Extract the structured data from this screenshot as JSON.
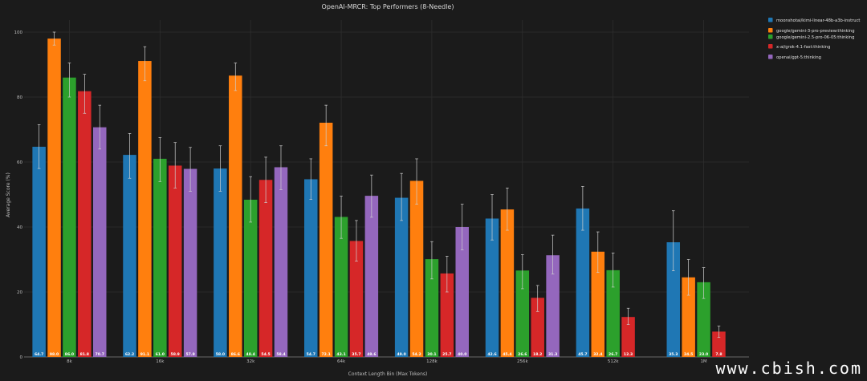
{
  "chart_data": {
    "type": "bar",
    "title": "OpenAI-MRCR: Top Performers (8-Needle)",
    "xlabel": "Context Length Bin (Max Tokens)",
    "ylabel": "Average Score (%)",
    "ylim": [
      0,
      100
    ],
    "yticks": [
      "0",
      "20",
      "40",
      "60",
      "80",
      "100"
    ],
    "grid": true,
    "legend_position": "top-right",
    "categories": [
      "8k",
      "16k",
      "32k",
      "64k",
      "128k",
      "256k",
      "512k",
      "1M"
    ],
    "series": [
      {
        "name": "moonshotai/kimi-linear-48b-a3b-instruct",
        "color": "#1f77b4",
        "values": [
          64.7,
          62.2,
          58.0,
          54.7,
          49.0,
          42.6,
          45.7,
          35.3
        ],
        "labels": [
          "64.7",
          "62.2",
          "58.0",
          "54.7",
          "49.0",
          "42.6",
          "45.7",
          "35.3"
        ],
        "err_low": [
          58.0,
          55.0,
          51.0,
          48.5,
          42.0,
          36.0,
          39.0,
          26.5
        ],
        "err_high": [
          71.5,
          68.8,
          65.0,
          61.0,
          56.5,
          50.0,
          52.5,
          45.0
        ]
      },
      {
        "name": "google/gemini-3-pro-preview:thinking",
        "color": "#ff7f0e",
        "values": [
          98.0,
          91.1,
          86.6,
          72.1,
          54.2,
          45.4,
          32.4,
          24.5
        ],
        "labels": [
          "98.0",
          "91.1",
          "86.6",
          "72.1",
          "54.2",
          "45.4",
          "32.4",
          "24.5"
        ],
        "err_low": [
          96.0,
          85.0,
          82.0,
          65.0,
          47.0,
          39.0,
          26.0,
          19.0
        ],
        "err_high": [
          100.0,
          95.5,
          90.5,
          77.5,
          61.0,
          52.0,
          38.5,
          30.0
        ]
      },
      {
        "name": "google/gemini-2.5-pro-06-05:thinking",
        "color": "#2ca02c",
        "values": [
          86.0,
          61.0,
          48.4,
          43.1,
          30.1,
          26.6,
          26.7,
          23.0
        ],
        "labels": [
          "86.0",
          "61.0",
          "48.4",
          "43.1",
          "30.1",
          "26.6",
          "26.7",
          "23.0"
        ],
        "err_low": [
          80.0,
          54.0,
          41.5,
          36.5,
          24.0,
          21.0,
          21.5,
          18.0
        ],
        "err_high": [
          90.5,
          67.5,
          55.5,
          49.5,
          35.5,
          31.5,
          32.0,
          27.5
        ]
      },
      {
        "name": "x-ai/grok-4.1-fast:thinking",
        "color": "#d62728",
        "values": [
          81.8,
          58.9,
          54.5,
          35.7,
          25.7,
          18.2,
          12.3,
          7.8
        ],
        "labels": [
          "81.8",
          "58.9",
          "54.5",
          "35.7",
          "25.7",
          "18.2",
          "12.3",
          "7.8"
        ],
        "err_low": [
          75.0,
          52.0,
          47.5,
          29.5,
          20.0,
          14.0,
          10.0,
          6.0
        ],
        "err_high": [
          87.0,
          66.0,
          61.5,
          42.0,
          31.0,
          22.0,
          15.0,
          9.5
        ]
      },
      {
        "name": "openai/gpt-5:thinking",
        "color": "#9467bd",
        "values": [
          70.7,
          57.9,
          58.4,
          49.6,
          40.0,
          31.3,
          null,
          null
        ],
        "labels": [
          "70.7",
          "57.9",
          "58.4",
          "49.6",
          "40.0",
          "31.3",
          "",
          ""
        ],
        "err_low": [
          64.0,
          51.0,
          51.5,
          43.0,
          33.0,
          25.5,
          null,
          null
        ],
        "err_high": [
          77.5,
          64.5,
          65.0,
          56.0,
          47.0,
          37.5,
          null,
          null
        ]
      }
    ]
  },
  "watermark": "www.cbish.com"
}
